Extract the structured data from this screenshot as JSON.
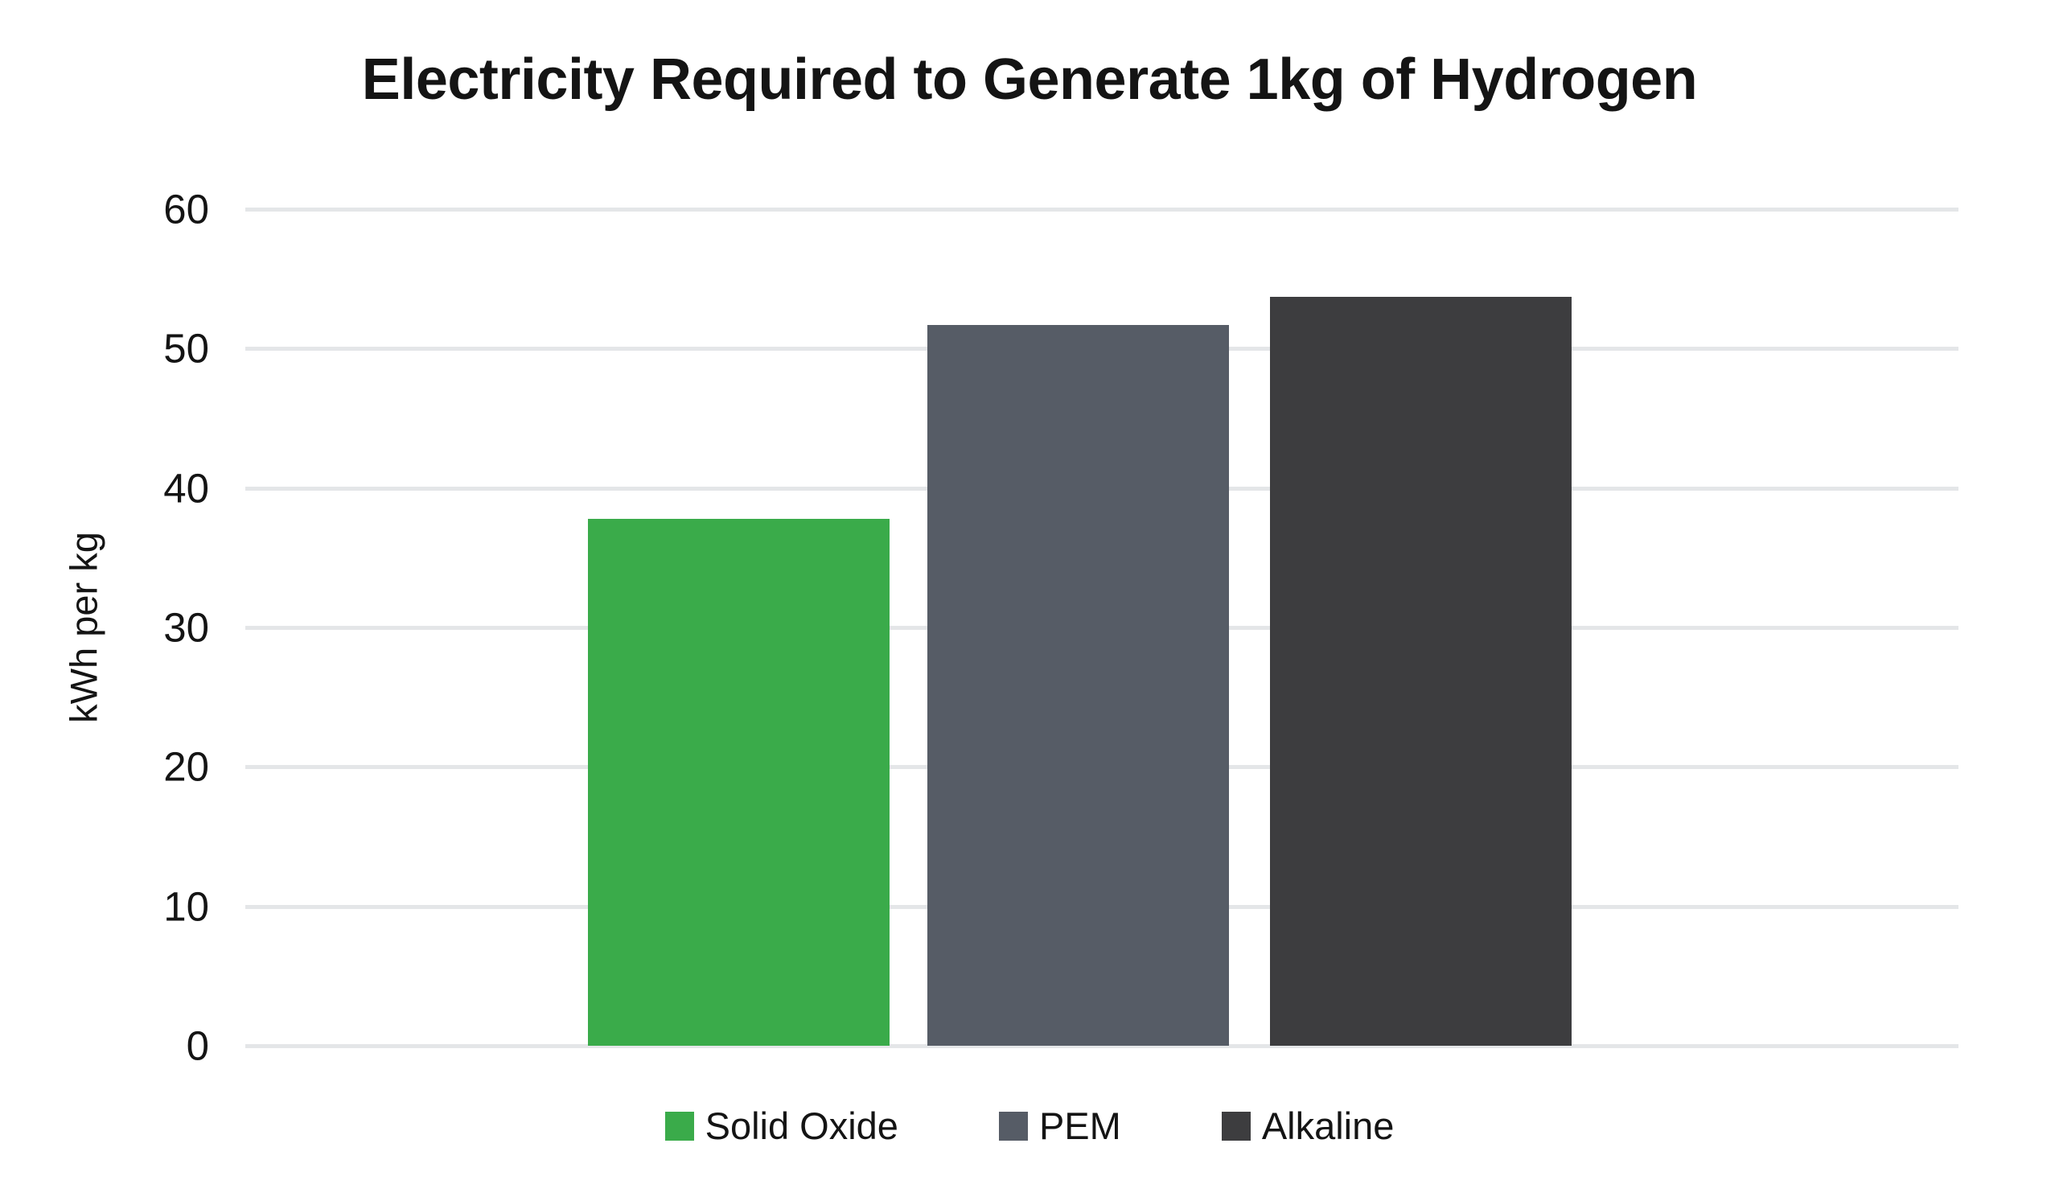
{
  "chart": {
    "title": "Electricity Required to Generate 1kg of Hydrogen",
    "ylabel": "kWh per kg"
  },
  "chart_data": {
    "type": "bar",
    "title": "Electricity Required to Generate 1kg of Hydrogen",
    "categories": [
      "Solid Oxide",
      "PEM",
      "Alkaline"
    ],
    "values": [
      37.8,
      51.7,
      53.7
    ],
    "colors": [
      "#3aab4a",
      "#565c66",
      "#3d3d3f"
    ],
    "xlabel": "",
    "ylabel": "kWh per kg",
    "ylim": [
      0,
      60
    ],
    "yticks": [
      0,
      10,
      20,
      30,
      40,
      50,
      60
    ],
    "grid": true,
    "gridline_color": "#e4e6e8",
    "text_color": "#141414",
    "legend_position": "bottom",
    "legend_entries": [
      "Solid Oxide",
      "PEM",
      "Alkaline"
    ]
  }
}
